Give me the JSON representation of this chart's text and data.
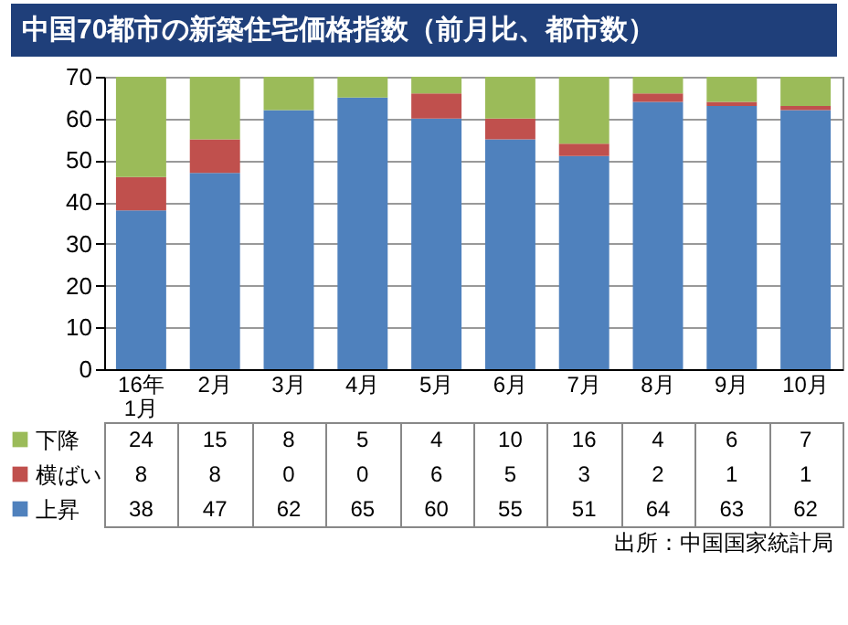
{
  "chart_data": {
    "type": "bar",
    "title": "中国70都市の新築住宅価格指数（前月比、都市数）",
    "categories": [
      "16年\n1月",
      "2月",
      "3月",
      "4月",
      "5月",
      "6月",
      "7月",
      "8月",
      "9月",
      "10月"
    ],
    "stacked": true,
    "series": [
      {
        "name": "上昇",
        "color": "#4f81bd",
        "values": [
          38,
          47,
          62,
          65,
          60,
          55,
          51,
          64,
          63,
          62
        ]
      },
      {
        "name": "横ばい",
        "color": "#c0504d",
        "values": [
          8,
          8,
          0,
          0,
          6,
          5,
          3,
          2,
          1,
          1
        ]
      },
      {
        "name": "下降",
        "color": "#9bbb59",
        "values": [
          24,
          15,
          8,
          5,
          4,
          10,
          16,
          4,
          6,
          7
        ]
      }
    ],
    "ylim": [
      0,
      70
    ],
    "yticks": [
      0,
      10,
      20,
      30,
      40,
      50,
      60,
      70
    ],
    "grid": "y",
    "legend": "bottom",
    "data_labels": true,
    "annotations": [
      "出所：中国国家統計局"
    ]
  }
}
